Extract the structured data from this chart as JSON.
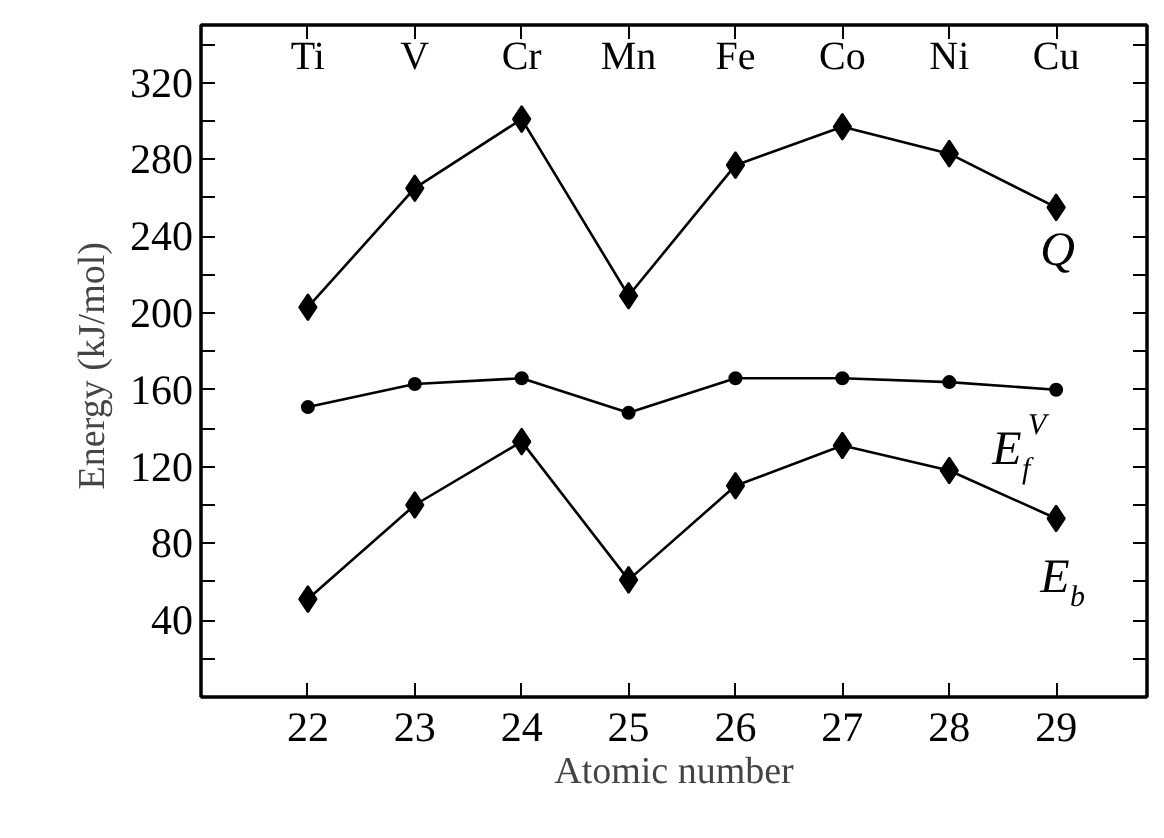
{
  "chart_data": {
    "type": "line",
    "xlabel": "Atomic number",
    "ylabel": "Energy  (kJ/mol)",
    "x": [
      22,
      23,
      24,
      25,
      26,
      27,
      28,
      29
    ],
    "series": [
      {
        "name": "Q",
        "color": "#000000",
        "marker": "diamond",
        "values": [
          203,
          265,
          301,
          209,
          277,
          297,
          283,
          255
        ]
      },
      {
        "name": "E$^{V}$$_{f}$",
        "color": "#000000",
        "marker": "circle",
        "values": [
          151,
          163,
          166,
          148,
          166,
          166,
          164,
          160
        ]
      },
      {
        "name": "E$_{b}$",
        "color": "#000000",
        "marker": "diamond",
        "values": [
          51,
          100,
          133,
          61,
          110,
          131,
          118,
          93
        ]
      }
    ],
    "xlim": [
      21,
      29.85
    ],
    "xticks": [
      22,
      23,
      24,
      25,
      26,
      27,
      28,
      29
    ],
    "annotations": [
      "Ti",
      "V",
      "Cr",
      "Mn",
      "Fe",
      "Co",
      "Ni",
      "Cu"
    ],
    "ylim": [
      0,
      350
    ],
    "yticks": [
      {
        "value": 20,
        "label": null
      },
      40,
      {
        "value": 60,
        "label": null
      },
      80,
      {
        "value": 100,
        "label": null
      },
      120,
      {
        "value": 140,
        "label": null
      },
      160,
      {
        "value": 180,
        "label": null
      },
      200,
      {
        "value": 220,
        "label": null
      },
      240,
      {
        "value": 260,
        "label": null
      },
      280,
      {
        "value": 300,
        "label": null
      },
      320,
      {
        "value": 340,
        "label": null
      }
    ],
    "grid": false,
    "legend": "right",
    "line_style": "solid"
  }
}
